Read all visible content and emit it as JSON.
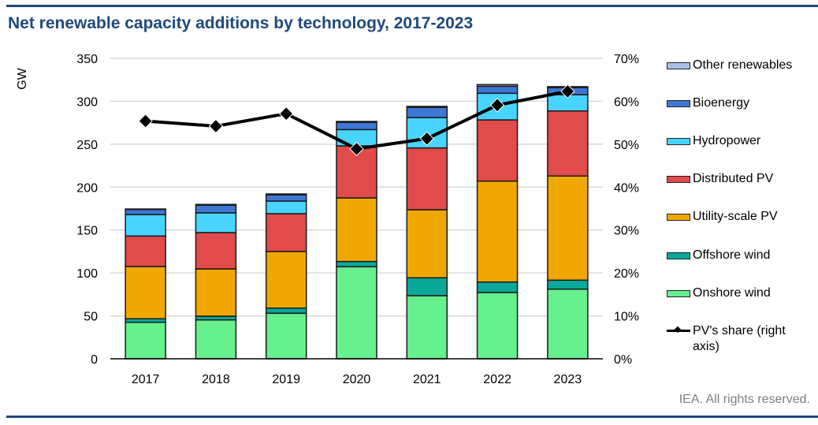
{
  "title": "Net renewable capacity additions by technology, 2017-2023",
  "source": "IEA. All rights reserved.",
  "chart_data": {
    "type": "bar",
    "stacked": true,
    "title": "Net renewable capacity additions by technology, 2017-2023",
    "xlabel": "",
    "ylabel": "GW",
    "y2label": "",
    "categories": [
      "2017",
      "2018",
      "2019",
      "2020",
      "2021",
      "2022",
      "2023"
    ],
    "ylim": [
      0,
      350
    ],
    "yticks": [
      "0",
      "50",
      "100",
      "150",
      "200",
      "250",
      "300",
      "350"
    ],
    "y2lim": [
      0,
      70
    ],
    "y2ticks": [
      "0%",
      "10%",
      "20%",
      "30%",
      "40%",
      "50%",
      "60%",
      "70%"
    ],
    "grid": true,
    "legend_position": "right",
    "series": [
      {
        "name": "Onshore wind",
        "color": "#66f08e",
        "values": [
          42.5,
          45.3,
          53,
          107.2,
          73.5,
          77.2,
          81.1
        ]
      },
      {
        "name": "Offshore wind",
        "color": "#0aa89a",
        "values": [
          4.1,
          4.3,
          6,
          6.1,
          20.8,
          12.2,
          10.5
        ]
      },
      {
        "name": "Utility-scale PV",
        "color": "#f0a800",
        "values": [
          60.9,
          55.1,
          66,
          74.1,
          79.3,
          117.6,
          121.3
        ]
      },
      {
        "name": "Distributed PV",
        "color": "#e24b4b",
        "values": [
          35.5,
          42.3,
          44,
          60.6,
          72,
          71.3,
          75.8
        ]
      },
      {
        "name": "Hydropower",
        "color": "#48d4ff",
        "values": [
          25,
          23,
          14.7,
          19,
          35.4,
          31,
          19
        ]
      },
      {
        "name": "Bioenergy",
        "color": "#3e77d4",
        "values": [
          6,
          9,
          7.3,
          8.5,
          12,
          8.2,
          8.3
        ]
      },
      {
        "name": "Other renewables",
        "color": "#a9c1e6",
        "values": [
          0.5,
          0.8,
          1,
          1,
          1,
          1.9,
          1
        ]
      }
    ],
    "line_series": {
      "name": "PV's share (right axis)",
      "axis": "right",
      "color": "#000000",
      "values": [
        55.4,
        54.2,
        57.1,
        48.9,
        51.3,
        59.1,
        62.3
      ]
    },
    "legend": [
      "Other renewables",
      "Bioenergy",
      "Hydropower",
      "Distributed PV",
      "Utility-scale PV",
      "Offshore wind",
      "Onshore wind",
      "PV's share (right axis)"
    ]
  }
}
